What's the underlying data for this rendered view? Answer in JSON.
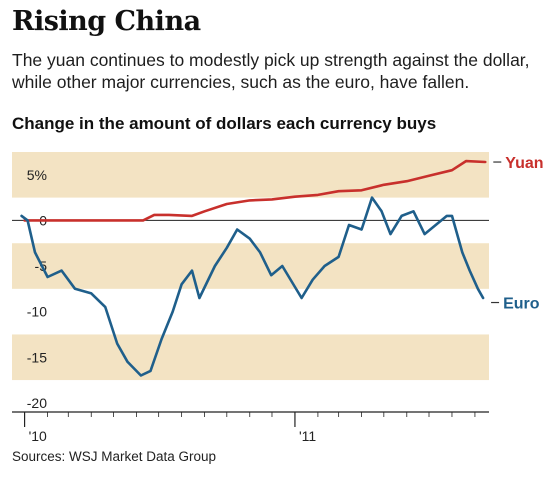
{
  "header": {
    "title": "Rising China",
    "subtitle": "The yuan continues to modestly pick up strength against the dollar, while other major currencies, such as the euro, have fallen.",
    "chart_heading": "Change in the amount of dollars each currency buys"
  },
  "footer": {
    "source": "Sources: WSJ Market Data Group"
  },
  "colors": {
    "yuan": "#c8302c",
    "euro": "#1f5f8b",
    "band": "#f3e3c3",
    "zero_line": "#222222"
  },
  "chart_data": {
    "type": "line",
    "title": "Change in the amount of dollars each currency buys",
    "xlabel": "",
    "ylabel": "",
    "ylim": [
      -21,
      7.5
    ],
    "xlim": [
      "2009-12-15",
      "2011-09-20"
    ],
    "y_ticks": [
      {
        "value": 5,
        "label": "5%"
      },
      {
        "value": 0,
        "label": "0"
      },
      {
        "value": -5,
        "label": "-5"
      },
      {
        "value": -10,
        "label": "-10"
      },
      {
        "value": -15,
        "label": "-15"
      },
      {
        "value": -20,
        "label": "-20"
      }
    ],
    "x_ticks": [
      {
        "value": "2010-01-01",
        "label": "'10"
      },
      {
        "value": "2011-01-01",
        "label": "'11"
      }
    ],
    "grid": false,
    "legend": "inline labels at right end of each series",
    "series": [
      {
        "name": "Yuan",
        "x": [
          "2010-01-01",
          "2010-02-01",
          "2010-03-01",
          "2010-04-01",
          "2010-05-01",
          "2010-06-10",
          "2010-06-25",
          "2010-07-15",
          "2010-08-15",
          "2010-09-01",
          "2010-10-01",
          "2010-11-01",
          "2010-12-01",
          "2011-01-01",
          "2011-02-01",
          "2011-03-01",
          "2011-04-01",
          "2011-05-01",
          "2011-06-01",
          "2011-07-01",
          "2011-08-01",
          "2011-08-20",
          "2011-09-15"
        ],
        "values": [
          0.0,
          0.0,
          0.0,
          0.0,
          0.0,
          0.0,
          0.6,
          0.6,
          0.5,
          1.0,
          1.8,
          2.2,
          2.3,
          2.6,
          2.8,
          3.2,
          3.3,
          3.9,
          4.3,
          4.9,
          5.5,
          6.5,
          6.4
        ]
      },
      {
        "name": "Euro",
        "x": [
          "2009-12-28",
          "2010-01-05",
          "2010-01-15",
          "2010-02-01",
          "2010-02-20",
          "2010-03-10",
          "2010-04-01",
          "2010-04-20",
          "2010-05-06",
          "2010-05-20",
          "2010-06-07",
          "2010-06-20",
          "2010-07-05",
          "2010-07-20",
          "2010-08-01",
          "2010-08-15",
          "2010-08-25",
          "2010-09-15",
          "2010-10-01",
          "2010-10-15",
          "2010-11-01",
          "2010-11-15",
          "2010-11-30",
          "2010-12-15",
          "2011-01-10",
          "2011-01-25",
          "2011-02-10",
          "2011-03-01",
          "2011-03-15",
          "2011-04-01",
          "2011-04-15",
          "2011-04-28",
          "2011-05-10",
          "2011-05-25",
          "2011-06-10",
          "2011-06-25",
          "2011-07-10",
          "2011-07-25",
          "2011-08-01",
          "2011-08-15",
          "2011-08-25",
          "2011-09-05",
          "2011-09-12"
        ],
        "values": [
          0.5,
          0.0,
          -3.5,
          -6.2,
          -5.5,
          -7.5,
          -8.0,
          -9.5,
          -13.5,
          -15.5,
          -17.0,
          -16.5,
          -13.0,
          -10.0,
          -7.0,
          -5.5,
          -8.5,
          -5.0,
          -3.0,
          -1.0,
          -2.0,
          -3.5,
          -6.0,
          -5.0,
          -8.5,
          -6.5,
          -5.0,
          -4.0,
          -0.5,
          -1.0,
          2.5,
          1.0,
          -1.5,
          0.5,
          1.0,
          -1.5,
          -0.5,
          0.5,
          0.5,
          -3.5,
          -5.5,
          -7.5,
          -8.5
        ]
      }
    ]
  }
}
